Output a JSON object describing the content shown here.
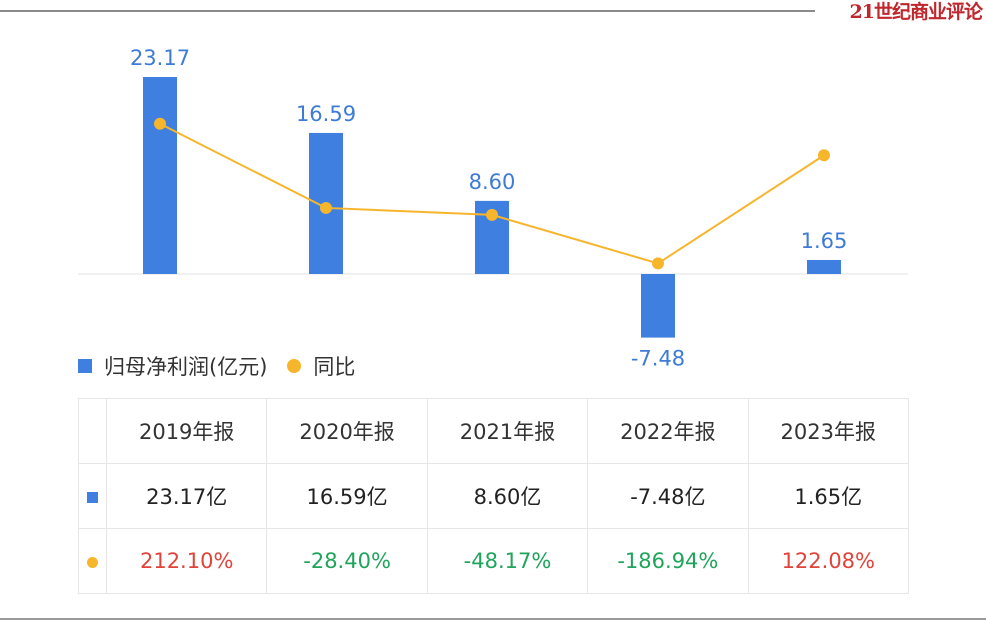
{
  "brand": "21世纪商业评论",
  "chart_data": {
    "type": "bar",
    "categories": [
      "2019年报",
      "2020年报",
      "2021年报",
      "2022年报",
      "2023年报"
    ],
    "series": [
      {
        "name": "归母净利润(亿元)",
        "type": "bar",
        "values": [
          23.17,
          16.59,
          8.6,
          -7.48,
          1.65
        ],
        "color": "#3f7fe0"
      },
      {
        "name": "同比",
        "type": "line",
        "values": [
          212.1,
          -28.4,
          -48.17,
          -186.94,
          122.08
        ],
        "color": "#f7b52c"
      }
    ],
    "bar_labels": [
      "23.17",
      "16.59",
      "8.60",
      "-7.48",
      "1.65"
    ],
    "legend_placement": "bottom-left",
    "grid": false
  },
  "legend": {
    "bar": "归母净利润(亿元)",
    "line": "同比"
  },
  "table": {
    "headers": [
      "2019年报",
      "2020年报",
      "2021年报",
      "2022年报",
      "2023年报"
    ],
    "profit": [
      "23.17亿",
      "16.59亿",
      "8.60亿",
      "-7.48亿",
      "1.65亿"
    ],
    "yoy": [
      "212.10%",
      "-28.40%",
      "-48.17%",
      "-186.94%",
      "122.08%"
    ]
  }
}
